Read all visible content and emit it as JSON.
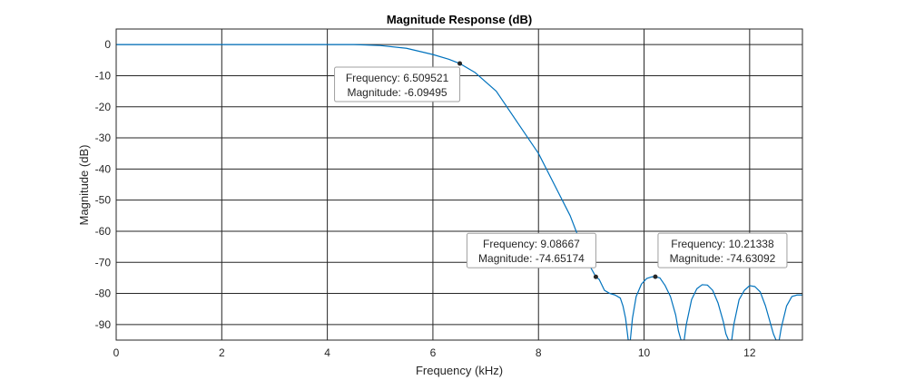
{
  "chart_data": {
    "type": "line",
    "title": "Magnitude Response (dB)",
    "xlabel": "Frequency (kHz)",
    "ylabel": "Magnitude (dB)",
    "xlim": [
      0,
      13
    ],
    "ylim": [
      -95,
      5
    ],
    "xticks": [
      0,
      2,
      4,
      6,
      8,
      10,
      12
    ],
    "yticks": [
      0,
      -10,
      -20,
      -30,
      -40,
      -50,
      -60,
      -70,
      -80,
      -90
    ],
    "grid": true,
    "line_color": "#0072BD",
    "series": [
      {
        "x": [
          0,
          1,
          2,
          3,
          4,
          4.5,
          5.0,
          5.5,
          6.0,
          6.3,
          6.509521,
          6.8,
          7.2,
          7.6,
          8.0,
          8.3,
          8.6,
          8.85,
          9.0,
          9.08667,
          9.15,
          9.25,
          9.35,
          9.45,
          9.55,
          9.6,
          9.65,
          9.7,
          9.72,
          9.74,
          9.78,
          9.85,
          9.95,
          10.05,
          10.15,
          10.21338,
          10.3,
          10.4,
          10.5,
          10.6,
          10.65,
          10.7,
          10.73,
          10.76,
          10.8,
          10.9,
          11.0,
          11.1,
          11.2,
          11.3,
          11.4,
          11.5,
          11.55,
          11.6,
          11.63,
          11.66,
          11.7,
          11.8,
          11.9,
          12.0,
          12.1,
          12.2,
          12.3,
          12.4,
          12.45,
          12.5,
          12.53,
          12.56,
          12.6,
          12.7,
          12.8,
          12.9,
          13.0
        ],
        "y": [
          0,
          0,
          0,
          0,
          0,
          0,
          -0.3,
          -1.2,
          -3.2,
          -4.7,
          -6.09495,
          -9,
          -15,
          -25,
          -35,
          -45,
          -55,
          -66,
          -72,
          -74.65174,
          -75.5,
          -79,
          -80,
          -80.5,
          -81.5,
          -84,
          -88,
          -95,
          -95,
          -95,
          -88,
          -81,
          -77,
          -75.2,
          -74.66,
          -74.63092,
          -75,
          -77.5,
          -81,
          -87,
          -92,
          -95,
          -95,
          -95,
          -90,
          -82,
          -78.5,
          -77.2,
          -77.3,
          -79,
          -83,
          -89,
          -93,
          -95,
          -95,
          -95,
          -90,
          -82,
          -79,
          -77.5,
          -77.8,
          -79.5,
          -84,
          -90,
          -93,
          -95,
          -95,
          -95,
          -91,
          -84,
          -81,
          -80.5,
          -80.5
        ]
      }
    ],
    "datatips": [
      {
        "x": 6.509521,
        "y": -6.09495,
        "freq_label": "Frequency: 6.509521",
        "mag_label": "Magnitude: -6.09495",
        "placement": "below-left"
      },
      {
        "x": 9.08667,
        "y": -74.65174,
        "freq_label": "Frequency: 9.08667",
        "mag_label": "Magnitude: -74.65174",
        "placement": "above-left"
      },
      {
        "x": 10.21338,
        "y": -74.63092,
        "freq_label": "Frequency: 10.21338",
        "mag_label": "Magnitude: -74.63092",
        "placement": "above-right"
      }
    ]
  }
}
